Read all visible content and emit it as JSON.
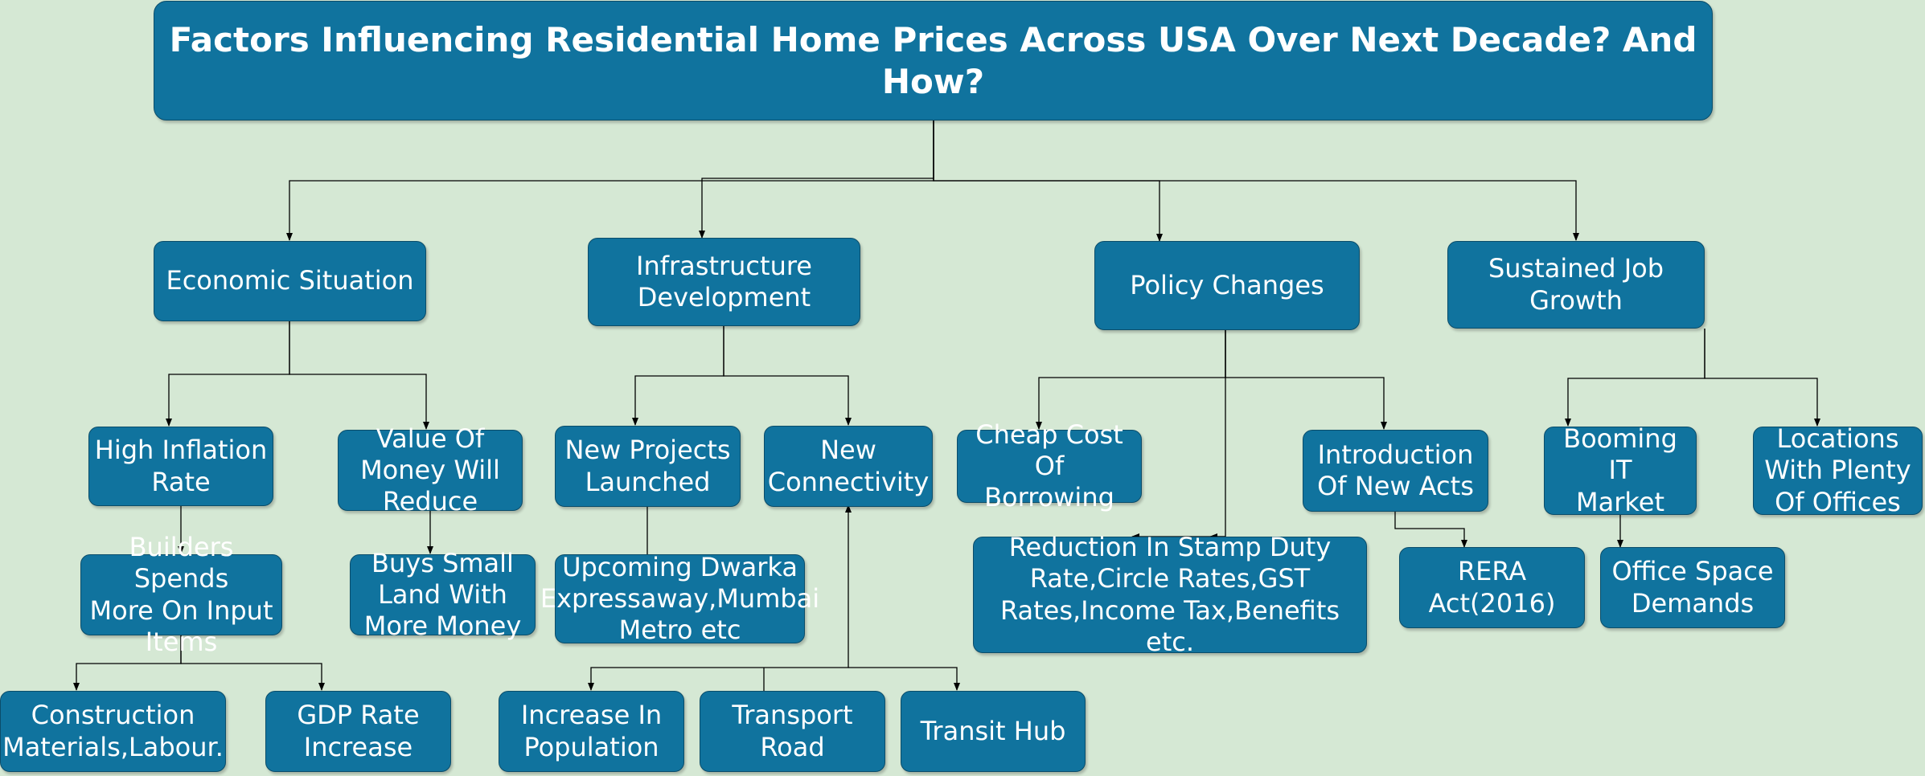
{
  "diagram": {
    "title": "Factors Influencing Residential Home Prices Across USA Over Next Decade? And How?",
    "nodes": {
      "economic": "Economic Situation",
      "infrastructure": "Infrastructure\nDevelopment",
      "policy": "Policy Changes",
      "jobs": "Sustained Job\nGrowth",
      "inflation": "High Inflation\nRate",
      "money_value": "Value Of\nMoney Will\nReduce",
      "new_projects": "New Projects\nLaunched",
      "connectivity": "New\nConnectivity",
      "cheap_borrowing": "Cheap Cost Of\nBorrowing",
      "new_acts": "Introduction\nOf New Acts",
      "it_market": "Booming IT\nMarket",
      "offices_locations": "Locations\nWith Plenty\nOf Offices",
      "builders": "Builders Spends\nMore On Input\nItems",
      "small_land": "Buys Small\nLand With\nMore Money",
      "upcoming": "Upcoming Dwarka\nExpressaway,Mumbai\nMetro etc",
      "stamp_duty": "Reduction In Stamp Duty\nRate,Circle Rates,GST\nRates,Income Tax,Benefits etc.",
      "rera": "RERA\nAct(2016)",
      "office_demand": "Office Space\nDemands",
      "construction": "Construction\nMaterials,Labour.",
      "gdp": "GDP Rate\nIncrease",
      "population": "Increase In\nPopulation",
      "transport": "Transport\nRoad",
      "transit": "Transit Hub"
    }
  }
}
